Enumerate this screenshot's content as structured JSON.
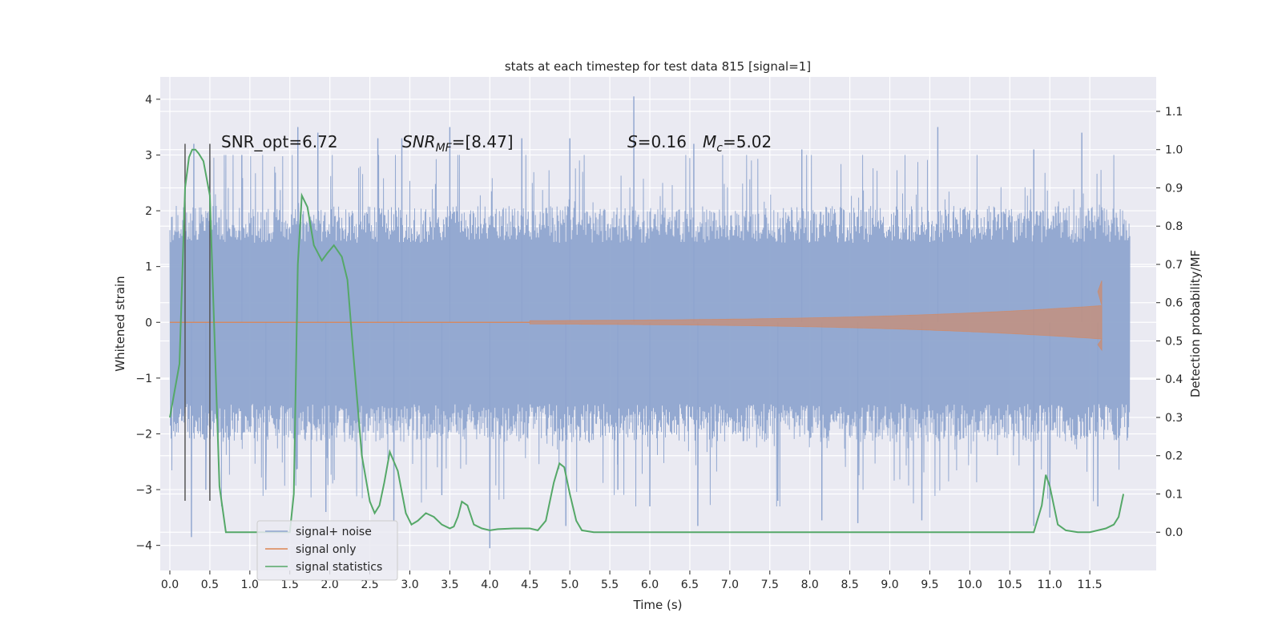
{
  "chart_data": {
    "type": "line",
    "title": "stats at each timestep for test data 815 [signal=1]",
    "xlabel": "Time (s)",
    "ylabel": "Whitened strain",
    "ylabel_right": "Detection probability/MF",
    "xlim": [
      -0.12,
      12.33
    ],
    "ylim": [
      -4.45,
      4.4
    ],
    "ylim_right": [
      -0.1,
      1.19
    ],
    "x_ticks": [
      "0.0",
      "0.5",
      "1.0",
      "1.5",
      "2.0",
      "2.5",
      "3.0",
      "3.5",
      "4.0",
      "4.5",
      "5.0",
      "5.5",
      "6.0",
      "6.5",
      "7.0",
      "7.5",
      "8.0",
      "8.5",
      "9.0",
      "9.5",
      "10.0",
      "10.5",
      "11.0",
      "11.5"
    ],
    "y_ticks": [
      "−4",
      "−3",
      "−2",
      "−1",
      "0",
      "1",
      "2",
      "3",
      "4"
    ],
    "y_ticks_right": [
      "0.0",
      "0.1",
      "0.2",
      "0.3",
      "0.4",
      "0.5",
      "0.6",
      "0.7",
      "0.8",
      "0.9",
      "1.0",
      "1.1"
    ],
    "grid": true,
    "legend_position": "lower-left",
    "annotations": {
      "snr_opt": "SNR_opt=6.72",
      "snr_mf_main": "SNR",
      "snr_mf_sub": "MF",
      "snr_mf_value": "=[8.47]",
      "s_main": "S",
      "s_value": "=0.16",
      "mc_main": "M",
      "mc_sub": "c",
      "mc_value": "=5.02"
    },
    "vertical_lines_x": [
      0.19,
      0.5
    ],
    "series": [
      {
        "name": "signal+ noise",
        "color": "#8fa5cf",
        "x_range": [
          0.0,
          12.0
        ],
        "envelope_upper": 1.9,
        "envelope_lower": -1.95,
        "spikes": [
          [
            0.3,
            3.2
          ],
          [
            0.5,
            2.9
          ],
          [
            0.9,
            3.0
          ],
          [
            1.6,
            3.5
          ],
          [
            1.85,
            3.4
          ],
          [
            2.6,
            3.3
          ],
          [
            2.9,
            3.3
          ],
          [
            3.5,
            3.5
          ],
          [
            4.4,
            3.3
          ],
          [
            5.0,
            3.3
          ],
          [
            5.8,
            4.05
          ],
          [
            6.55,
            3.2
          ],
          [
            7.9,
            3.1
          ],
          [
            9.6,
            3.5
          ],
          [
            10.8,
            3.1
          ],
          [
            11.4,
            3.4
          ],
          [
            0.27,
            -3.85
          ],
          [
            0.45,
            -3.0
          ],
          [
            1.2,
            -3.0
          ],
          [
            1.95,
            -3.4
          ],
          [
            2.8,
            -3.55
          ],
          [
            3.4,
            -3.1
          ],
          [
            4.0,
            -4.05
          ],
          [
            4.95,
            -3.65
          ],
          [
            5.6,
            -3.0
          ],
          [
            6.0,
            -3.3
          ],
          [
            6.6,
            -3.65
          ],
          [
            7.6,
            -3.2
          ],
          [
            8.15,
            -3.55
          ],
          [
            8.6,
            -3.6
          ],
          [
            9.4,
            -3.55
          ],
          [
            10.8,
            -3.65
          ],
          [
            11.0,
            -3.5
          ],
          [
            11.6,
            -3.3
          ]
        ]
      },
      {
        "name": "signal only",
        "color": "#dd8452",
        "x_range": [
          4.5,
          11.65
        ],
        "peak_amplitude": [
          0.75,
          -0.5
        ]
      },
      {
        "name": "signal statistics",
        "color": "#55a868",
        "axis": "right",
        "x": [
          0.0,
          0.12,
          0.19,
          0.24,
          0.28,
          0.32,
          0.36,
          0.42,
          0.5,
          0.56,
          0.62,
          0.7,
          0.8,
          1.0,
          1.2,
          1.4,
          1.5,
          1.55,
          1.6,
          1.65,
          1.72,
          1.8,
          1.9,
          1.97,
          2.05,
          2.15,
          2.22,
          2.3,
          2.4,
          2.5,
          2.56,
          2.62,
          2.68,
          2.75,
          2.85,
          2.95,
          3.02,
          3.1,
          3.2,
          3.3,
          3.4,
          3.5,
          3.55,
          3.6,
          3.65,
          3.72,
          3.8,
          3.9,
          4.0,
          4.1,
          4.3,
          4.5,
          4.6,
          4.7,
          4.8,
          4.87,
          4.93,
          5.0,
          5.08,
          5.15,
          5.3,
          5.6,
          6.0,
          6.5,
          7.0,
          7.5,
          8.0,
          8.5,
          9.0,
          9.5,
          10.0,
          10.5,
          10.8,
          10.9,
          10.95,
          11.0,
          11.05,
          11.1,
          11.2,
          11.35,
          11.5,
          11.6,
          11.7,
          11.8,
          11.86,
          11.92
        ],
        "y": [
          0.3,
          0.44,
          0.9,
          0.98,
          1.0,
          1.0,
          0.99,
          0.97,
          0.88,
          0.5,
          0.12,
          0.0,
          0.0,
          0.0,
          0.0,
          0.0,
          0.0,
          0.1,
          0.7,
          0.88,
          0.85,
          0.75,
          0.71,
          0.73,
          0.75,
          0.72,
          0.66,
          0.45,
          0.2,
          0.08,
          0.05,
          0.07,
          0.13,
          0.21,
          0.16,
          0.05,
          0.02,
          0.03,
          0.05,
          0.04,
          0.02,
          0.01,
          0.015,
          0.04,
          0.08,
          0.07,
          0.02,
          0.01,
          0.005,
          0.008,
          0.01,
          0.01,
          0.005,
          0.03,
          0.13,
          0.18,
          0.17,
          0.1,
          0.03,
          0.005,
          0.0,
          0.0,
          0.0,
          0.0,
          0.0,
          0.0,
          0.0,
          0.0,
          0.0,
          0.0,
          0.0,
          0.0,
          0.0,
          0.07,
          0.15,
          0.12,
          0.07,
          0.02,
          0.005,
          0.0,
          0.0,
          0.005,
          0.01,
          0.02,
          0.04,
          0.1
        ]
      }
    ]
  }
}
